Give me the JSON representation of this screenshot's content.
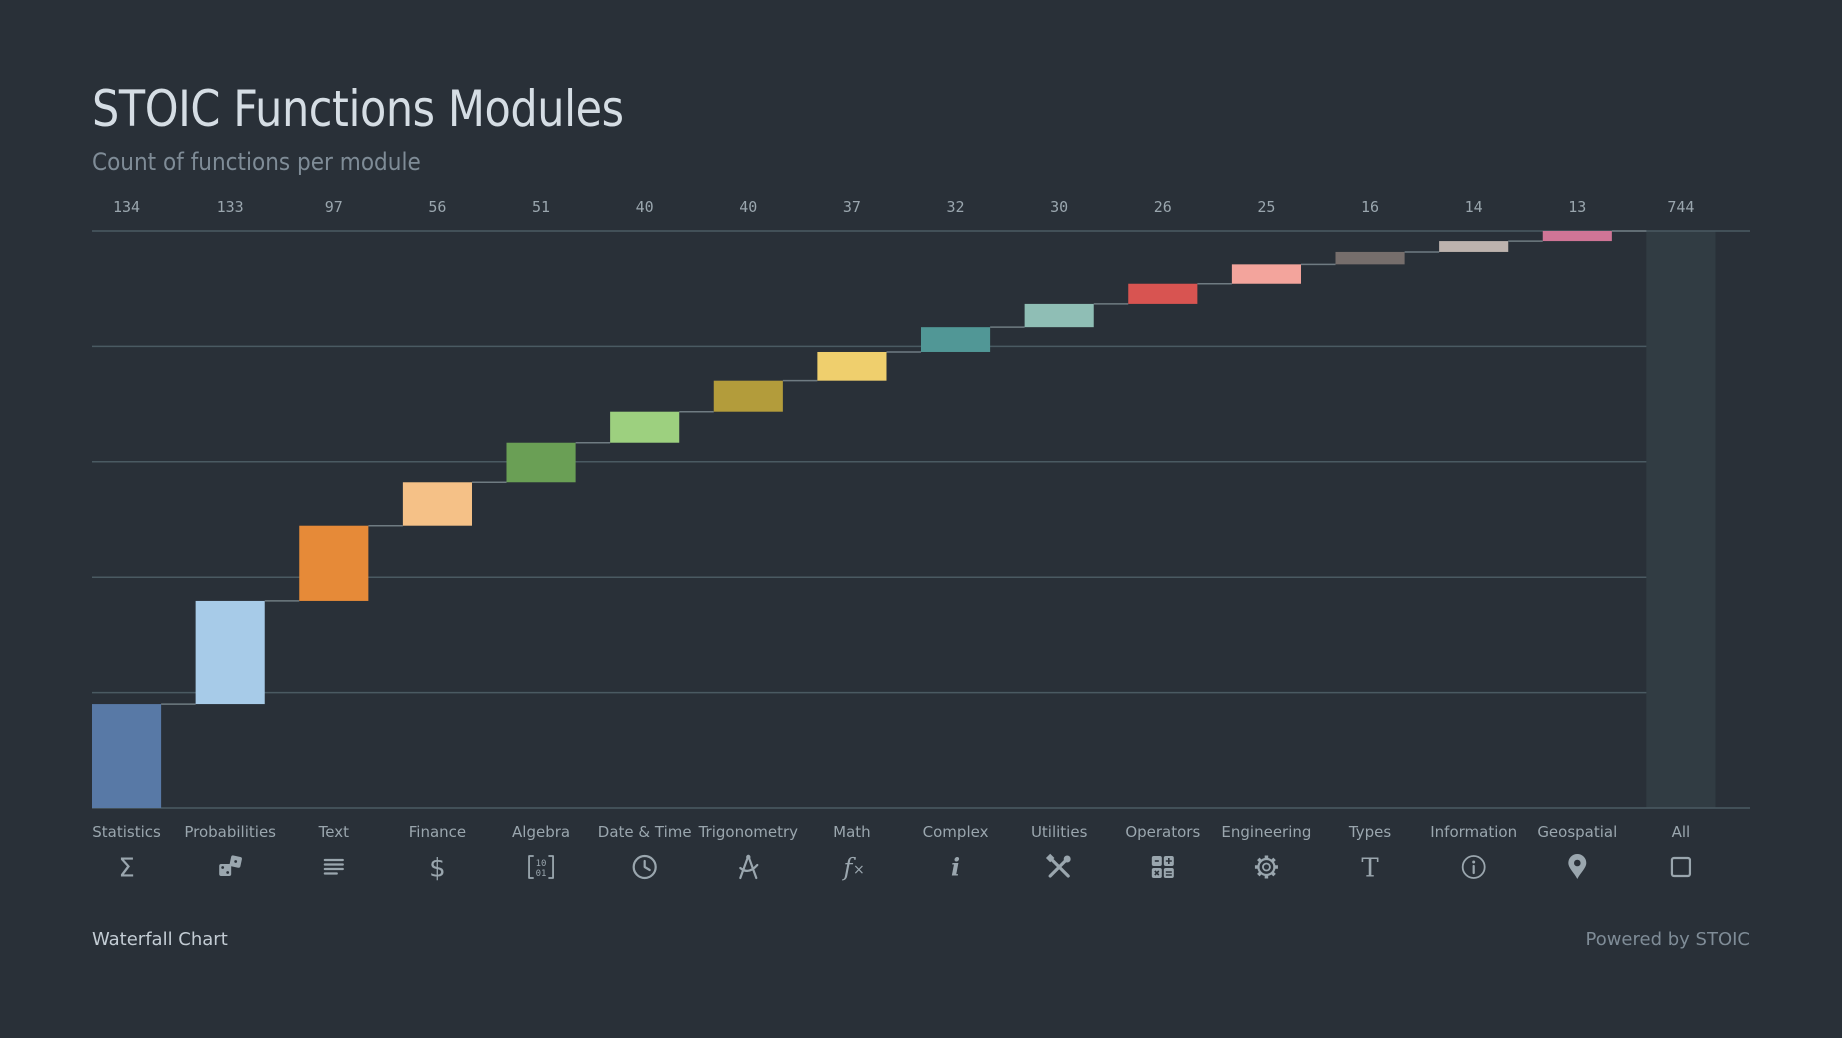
{
  "header": {
    "title": "STOIC Functions Modules",
    "subtitle": "Count of functions per module"
  },
  "footer": {
    "chart_kind": "Waterfall Chart",
    "powered_by": "Powered by STOIC"
  },
  "chart_data": {
    "type": "bar",
    "variant": "waterfall",
    "categories": [
      "Statistics",
      "Probabilities",
      "Text",
      "Finance",
      "Algebra",
      "Date & Time",
      "Trigonometry",
      "Math",
      "Complex",
      "Utilities",
      "Operators",
      "Engineering",
      "Types",
      "Information",
      "Geospatial"
    ],
    "values": [
      134,
      133,
      97,
      56,
      51,
      40,
      40,
      37,
      32,
      30,
      26,
      25,
      16,
      14,
      13
    ],
    "total_label": "All",
    "total_value": 744,
    "ylim": [
      0,
      744
    ],
    "grid": true,
    "colors": [
      "#5879a6",
      "#a7cbe8",
      "#e68a38",
      "#f5c187",
      "#6a9f55",
      "#9dd07f",
      "#b39c3b",
      "#efcf6d",
      "#519796",
      "#8fbeb5",
      "#d85451",
      "#f3a49c",
      "#766e6c",
      "#bdb3ae",
      "#cf7596"
    ],
    "icons": [
      "sigma-icon",
      "dice-icon",
      "text-lines-icon",
      "dollar-icon",
      "binary-matrix-icon",
      "clock-icon",
      "compass-icon",
      "function-icon",
      "imaginary-i-icon",
      "tools-icon",
      "calculator-grid-icon",
      "gear-icon",
      "type-t-icon",
      "info-circle-icon",
      "map-pin-icon",
      "square-icon"
    ],
    "background": "#293038",
    "total_column_color": "#313c43",
    "gridline_color": "#4a5a62"
  }
}
